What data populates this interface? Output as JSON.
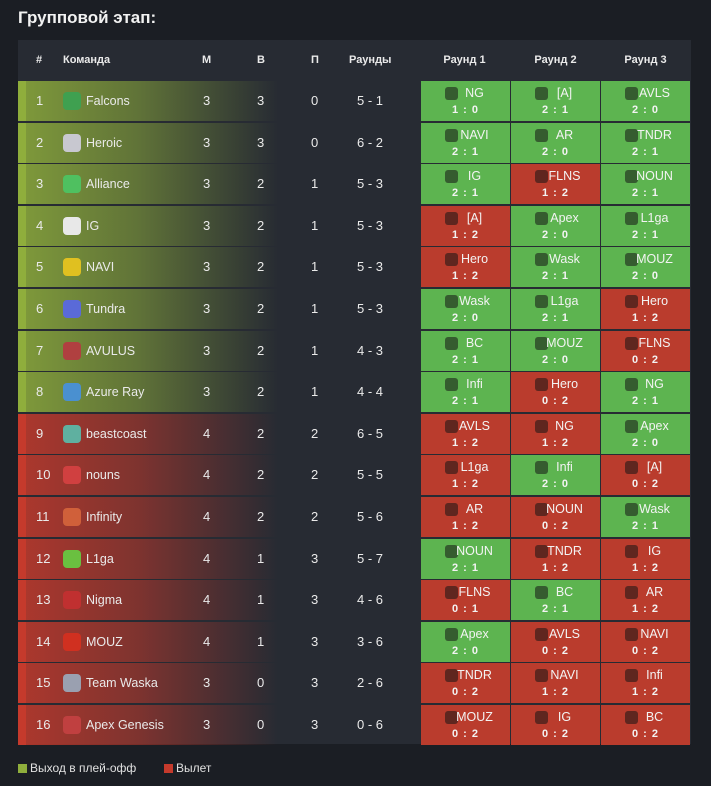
{
  "page_title": "Групповой этап:",
  "colors": {
    "qualify": "#8fae3c",
    "eliminated": "#c53a2c",
    "win_cell": "#5db450",
    "loss_cell": "#ba3c2d"
  },
  "header": {
    "num": "#",
    "team": "Команда",
    "matches": "М",
    "wins": "В",
    "losses": "П",
    "rounds": "Раунды",
    "round1": "Раунд 1",
    "round2": "Раунд 2",
    "round3": "Раунд 3"
  },
  "rows": [
    {
      "pos": "1",
      "team": "Falcons",
      "m": "3",
      "w": "3",
      "l": "0",
      "rounds": "5 - 1",
      "status": "qualify",
      "icon": "falcon-icon",
      "r": [
        {
          "t": "NG",
          "s": "1 : 0",
          "win": true
        },
        {
          "t": "[A]",
          "s": "2 : 1",
          "win": true
        },
        {
          "t": "AVLS",
          "s": "2 : 0",
          "win": true
        }
      ]
    },
    {
      "pos": "2",
      "team": "Heroic",
      "m": "3",
      "w": "3",
      "l": "0",
      "rounds": "6 - 2",
      "status": "qualify",
      "icon": "heroic-icon",
      "r": [
        {
          "t": "NAVI",
          "s": "2 : 1",
          "win": true
        },
        {
          "t": "AR",
          "s": "2 : 0",
          "win": true
        },
        {
          "t": "TNDR",
          "s": "2 : 1",
          "win": true
        }
      ]
    },
    {
      "pos": "3",
      "team": "Alliance",
      "m": "3",
      "w": "2",
      "l": "1",
      "rounds": "5 - 3",
      "status": "qualify",
      "icon": "alliance-icon",
      "r": [
        {
          "t": "IG",
          "s": "2 : 1",
          "win": true
        },
        {
          "t": "FLNS",
          "s": "1 : 2",
          "win": false
        },
        {
          "t": "NOUN",
          "s": "2 : 1",
          "win": true
        }
      ]
    },
    {
      "pos": "4",
      "team": "IG",
      "m": "3",
      "w": "2",
      "l": "1",
      "rounds": "5 - 3",
      "status": "qualify",
      "icon": "ig-icon",
      "r": [
        {
          "t": "[A]",
          "s": "1 : 2",
          "win": false
        },
        {
          "t": "Apex",
          "s": "2 : 0",
          "win": true
        },
        {
          "t": "L1ga",
          "s": "2 : 1",
          "win": true
        }
      ]
    },
    {
      "pos": "5",
      "team": "NAVI",
      "m": "3",
      "w": "2",
      "l": "1",
      "rounds": "5 - 3",
      "status": "qualify",
      "icon": "navi-icon",
      "r": [
        {
          "t": "Hero",
          "s": "1 : 2",
          "win": false
        },
        {
          "t": "Wask",
          "s": "2 : 1",
          "win": true
        },
        {
          "t": "MOUZ",
          "s": "2 : 0",
          "win": true
        }
      ]
    },
    {
      "pos": "6",
      "team": "Tundra",
      "m": "3",
      "w": "2",
      "l": "1",
      "rounds": "5 - 3",
      "status": "qualify",
      "icon": "tundra-icon",
      "r": [
        {
          "t": "Wask",
          "s": "2 : 0",
          "win": true
        },
        {
          "t": "L1ga",
          "s": "2 : 1",
          "win": true
        },
        {
          "t": "Hero",
          "s": "1 : 2",
          "win": false
        }
      ]
    },
    {
      "pos": "7",
      "team": "AVULUS",
      "m": "3",
      "w": "2",
      "l": "1",
      "rounds": "4 - 3",
      "status": "qualify",
      "icon": "avulus-icon",
      "r": [
        {
          "t": "BC",
          "s": "2 : 1",
          "win": true
        },
        {
          "t": "MOUZ",
          "s": "2 : 0",
          "win": true
        },
        {
          "t": "FLNS",
          "s": "0 : 2",
          "win": false
        }
      ]
    },
    {
      "pos": "8",
      "team": "Azure Ray",
      "m": "3",
      "w": "2",
      "l": "1",
      "rounds": "4 - 4",
      "status": "qualify",
      "icon": "azure-ray-icon",
      "r": [
        {
          "t": "Infi",
          "s": "2 : 1",
          "win": true
        },
        {
          "t": "Hero",
          "s": "0 : 2",
          "win": false
        },
        {
          "t": "NG",
          "s": "2 : 1",
          "win": true
        }
      ]
    },
    {
      "pos": "9",
      "team": "beastcoast",
      "m": "4",
      "w": "2",
      "l": "2",
      "rounds": "6 - 5",
      "status": "eliminated",
      "icon": "beastcoast-icon",
      "r": [
        {
          "t": "AVLS",
          "s": "1 : 2",
          "win": false
        },
        {
          "t": "NG",
          "s": "1 : 2",
          "win": false
        },
        {
          "t": "Apex",
          "s": "2 : 0",
          "win": true
        }
      ]
    },
    {
      "pos": "10",
      "team": "nouns",
      "m": "4",
      "w": "2",
      "l": "2",
      "rounds": "5 - 5",
      "status": "eliminated",
      "icon": "nouns-icon",
      "r": [
        {
          "t": "L1ga",
          "s": "1 : 2",
          "win": false
        },
        {
          "t": "Infi",
          "s": "2 : 0",
          "win": true
        },
        {
          "t": "[A]",
          "s": "0 : 2",
          "win": false
        }
      ]
    },
    {
      "pos": "11",
      "team": "Infinity",
      "m": "4",
      "w": "2",
      "l": "2",
      "rounds": "5 - 6",
      "status": "eliminated",
      "icon": "infinity-icon",
      "r": [
        {
          "t": "AR",
          "s": "1 : 2",
          "win": false
        },
        {
          "t": "NOUN",
          "s": "0 : 2",
          "win": false
        },
        {
          "t": "Wask",
          "s": "2 : 1",
          "win": true
        }
      ]
    },
    {
      "pos": "12",
      "team": "L1ga",
      "m": "4",
      "w": "1",
      "l": "3",
      "rounds": "5 - 7",
      "status": "eliminated",
      "icon": "l1ga-icon",
      "r": [
        {
          "t": "NOUN",
          "s": "2 : 1",
          "win": true
        },
        {
          "t": "TNDR",
          "s": "1 : 2",
          "win": false
        },
        {
          "t": "IG",
          "s": "1 : 2",
          "win": false
        }
      ]
    },
    {
      "pos": "13",
      "team": "Nigma",
      "m": "4",
      "w": "1",
      "l": "3",
      "rounds": "4 - 6",
      "status": "eliminated",
      "icon": "nigma-icon",
      "r": [
        {
          "t": "FLNS",
          "s": "0 : 1",
          "win": false
        },
        {
          "t": "BC",
          "s": "2 : 1",
          "win": true
        },
        {
          "t": "AR",
          "s": "1 : 2",
          "win": false
        }
      ]
    },
    {
      "pos": "14",
      "team": "MOUZ",
      "m": "4",
      "w": "1",
      "l": "3",
      "rounds": "3 - 6",
      "status": "eliminated",
      "icon": "mouz-icon",
      "r": [
        {
          "t": "Apex",
          "s": "2 : 0",
          "win": true
        },
        {
          "t": "AVLS",
          "s": "0 : 2",
          "win": false
        },
        {
          "t": "NAVI",
          "s": "0 : 2",
          "win": false
        }
      ]
    },
    {
      "pos": "15",
      "team": "Team Waska",
      "m": "3",
      "w": "0",
      "l": "3",
      "rounds": "2 - 6",
      "status": "eliminated",
      "icon": "team-waska-icon",
      "r": [
        {
          "t": "TNDR",
          "s": "0 : 2",
          "win": false
        },
        {
          "t": "NAVI",
          "s": "1 : 2",
          "win": false
        },
        {
          "t": "Infi",
          "s": "1 : 2",
          "win": false
        }
      ]
    },
    {
      "pos": "16",
      "team": "Apex Genesis",
      "m": "3",
      "w": "0",
      "l": "3",
      "rounds": "0 - 6",
      "status": "eliminated",
      "icon": "apex-genesis-icon",
      "r": [
        {
          "t": "MOUZ",
          "s": "0 : 2",
          "win": false
        },
        {
          "t": "IG",
          "s": "0 : 2",
          "win": false
        },
        {
          "t": "BC",
          "s": "0 : 2",
          "win": false
        }
      ]
    }
  ],
  "legend": {
    "qualify": "Выход в плей-офф",
    "eliminated": "Вылет"
  }
}
